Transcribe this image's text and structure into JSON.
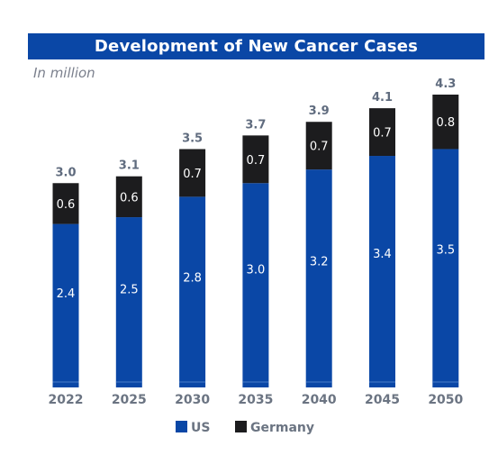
{
  "chart_data": {
    "type": "bar",
    "stacked": true,
    "title": "Development of New Cancer Cases",
    "subtitle": "In million",
    "categories": [
      "2022",
      "2025",
      "2030",
      "2035",
      "2040",
      "2045",
      "2050"
    ],
    "series": [
      {
        "name": "US",
        "values": [
          2.4,
          2.5,
          2.8,
          3.0,
          3.2,
          3.4,
          3.5
        ],
        "labels": [
          "2.4",
          "2.5",
          "2.8",
          "3.0",
          "3.2",
          "3.4",
          "3.5"
        ],
        "color": "#0a47a6"
      },
      {
        "name": "Germany",
        "values": [
          0.6,
          0.6,
          0.7,
          0.7,
          0.7,
          0.7,
          0.8
        ],
        "labels": [
          "0.6",
          "0.6",
          "0.7",
          "0.7",
          "0.7",
          "0.7",
          "0.8"
        ],
        "color": "#1c1c1e"
      }
    ],
    "totals": [
      "3.0",
      "3.1",
      "3.5",
      "3.7",
      "3.9",
      "4.1",
      "4.3"
    ],
    "ylim": [
      0,
      4.3
    ],
    "grid": false,
    "legend_position": "bottom"
  }
}
